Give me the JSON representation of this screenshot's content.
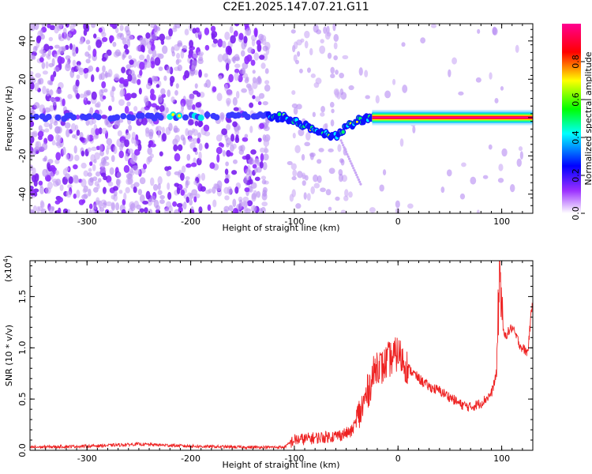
{
  "title": "C2E1.2025.147.07.21.G11",
  "chart_data": [
    {
      "type": "heatmap",
      "xlabel": "Height of straight line (km)",
      "ylabel": "Frequency (Hz)",
      "xlim": [
        -355,
        130
      ],
      "ylim": [
        -50,
        49
      ],
      "xticks": [
        -300,
        -200,
        -100,
        0,
        100
      ],
      "yticks": [
        -40,
        -20,
        0,
        20,
        40
      ],
      "colorbar": {
        "label": "Normalized spectral amplitude",
        "range": [
          0,
          1
        ],
        "ticks": [
          "0.0",
          "0.2",
          "0.4",
          "0.6",
          "0.8"
        ],
        "colors": [
          "#ffffff",
          "#9b30ff",
          "#0000ff",
          "#00ffff",
          "#00ff00",
          "#ffff00",
          "#ff0000",
          "#ff0090"
        ]
      },
      "ridge": [
        {
          "x": -355,
          "y": 0
        },
        {
          "x": -130,
          "y": 1
        },
        {
          "x": -110,
          "y": 0
        },
        {
          "x": -90,
          "y": -4
        },
        {
          "x": -70,
          "y": -8
        },
        {
          "x": -60,
          "y": -10
        },
        {
          "x": -50,
          "y": -5
        },
        {
          "x": -40,
          "y": -2
        },
        {
          "x": -20,
          "y": 1
        },
        {
          "x": 0,
          "y": 0
        },
        {
          "x": 130,
          "y": 0
        }
      ]
    },
    {
      "type": "line",
      "xlabel": "Height of straight line (km)",
      "ylabel": "SNR (10 * v/v)",
      "yscale_label": "(x10",
      "yscale_exp": "4",
      "ysuffix": ")",
      "xlim": [
        -355,
        130
      ],
      "ylim": [
        0,
        1.85
      ],
      "xticks": [
        -300,
        -200,
        -100,
        0,
        100
      ],
      "yticks": [
        "0.0",
        "0.5",
        "1.0",
        "1.5"
      ],
      "color": "#ee2222",
      "series": [
        {
          "points": [
            [
              -355,
              0.03
            ],
            [
              -300,
              0.04
            ],
            [
              -250,
              0.06
            ],
            [
              -200,
              0.04
            ],
            [
              -150,
              0.03
            ],
            [
              -110,
              0.03
            ],
            [
              -100,
              0.1
            ],
            [
              -80,
              0.12
            ],
            [
              -60,
              0.14
            ],
            [
              -45,
              0.18
            ],
            [
              -35,
              0.4
            ],
            [
              -30,
              0.55
            ],
            [
              -25,
              0.7
            ],
            [
              -20,
              0.85
            ],
            [
              -15,
              0.8
            ],
            [
              -10,
              0.88
            ],
            [
              -5,
              0.9
            ],
            [
              0,
              0.95
            ],
            [
              10,
              0.8
            ],
            [
              20,
              0.7
            ],
            [
              30,
              0.62
            ],
            [
              40,
              0.58
            ],
            [
              50,
              0.52
            ],
            [
              60,
              0.45
            ],
            [
              70,
              0.42
            ],
            [
              80,
              0.46
            ],
            [
              90,
              0.55
            ],
            [
              95,
              0.75
            ],
            [
              98,
              1.8
            ],
            [
              102,
              1.1
            ],
            [
              110,
              1.2
            ],
            [
              118,
              1.02
            ],
            [
              125,
              0.95
            ],
            [
              130,
              1.5
            ]
          ]
        }
      ]
    }
  ]
}
